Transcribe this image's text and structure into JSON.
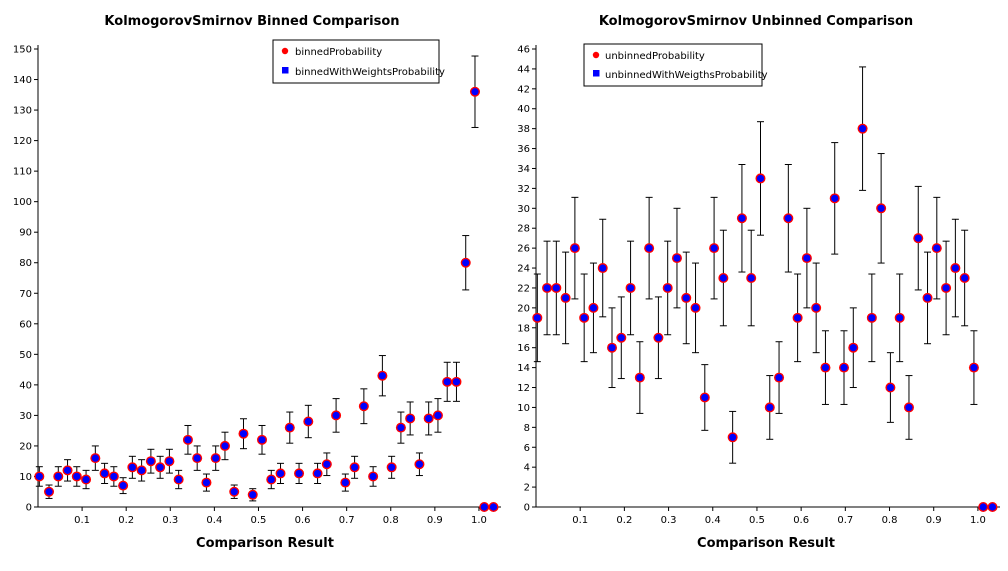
{
  "chart_data": [
    {
      "type": "scatter",
      "title": "KolmogorovSmirnov Binned Comparison",
      "xlabel": "Comparison Result",
      "ylabel": "",
      "xlim": [
        0.0,
        1.05
      ],
      "ylim": [
        0,
        150
      ],
      "xticks": [
        0.1,
        0.2,
        0.3,
        0.4,
        0.5,
        0.6,
        0.7,
        0.8,
        0.9,
        1.0
      ],
      "xtick_labels": [
        "0.1",
        "0.2",
        "0.3",
        "0.4",
        "0.5",
        "0.6",
        "0.7",
        "0.8",
        "0.9",
        "1.0"
      ],
      "yticks": [
        0,
        10,
        20,
        30,
        40,
        50,
        60,
        70,
        80,
        90,
        100,
        110,
        120,
        130,
        140,
        150
      ],
      "ytick_labels": [
        "0",
        "10",
        "20",
        "30",
        "40",
        "50",
        "60",
        "70",
        "80",
        "90",
        "100",
        "110",
        "120",
        "130",
        "140",
        "150"
      ],
      "grid": false,
      "legend_position": "top-right",
      "series": [
        {
          "name": "binnedProbability",
          "color": "#ff0000",
          "marker": "circle",
          "x": [
            0.003,
            0.025,
            0.046,
            0.067,
            0.088,
            0.109,
            0.13,
            0.151,
            0.172,
            0.193,
            0.214,
            0.235,
            0.256,
            0.277,
            0.298,
            0.319,
            0.34,
            0.361,
            0.382,
            0.403,
            0.424,
            0.445,
            0.466,
            0.487,
            0.508,
            0.529,
            0.55,
            0.571,
            0.592,
            0.613,
            0.634,
            0.655,
            0.676,
            0.697,
            0.718,
            0.739,
            0.76,
            0.781,
            0.802,
            0.823,
            0.844,
            0.865,
            0.886,
            0.907,
            0.928,
            0.949,
            0.97,
            0.991,
            1.012,
            1.033
          ],
          "y": [
            10,
            5,
            10,
            12,
            10,
            9,
            16,
            11,
            10,
            7,
            13,
            12,
            15,
            13,
            15,
            9,
            22,
            16,
            8,
            16,
            20,
            5,
            24,
            4,
            22,
            9,
            11,
            26,
            11,
            28,
            11,
            14,
            30,
            8,
            13,
            33,
            10,
            43,
            13,
            26,
            29,
            14,
            29,
            30,
            41,
            41,
            80,
            136,
            0,
            0
          ],
          "error": [
            3.2,
            2.2,
            3.2,
            3.5,
            3.2,
            3.0,
            4.0,
            3.3,
            3.2,
            2.6,
            3.6,
            3.5,
            3.9,
            3.6,
            3.9,
            3.0,
            4.7,
            4.0,
            2.8,
            4.0,
            4.5,
            2.2,
            4.9,
            2.0,
            4.7,
            3.0,
            3.3,
            5.1,
            3.3,
            5.3,
            3.3,
            3.7,
            5.5,
            2.8,
            3.6,
            5.7,
            3.2,
            6.6,
            3.6,
            5.1,
            5.4,
            3.7,
            5.4,
            5.5,
            6.4,
            6.4,
            8.9,
            11.7,
            0,
            0
          ]
        },
        {
          "name": "binnedWithWeightsProbability",
          "color": "#0000ff",
          "marker": "square"
        }
      ]
    },
    {
      "type": "scatter",
      "title": "KolmogorovSmirnov Unbinned Comparison",
      "xlabel": "Comparison Result",
      "ylabel": "",
      "xlim": [
        0.0,
        1.05
      ],
      "ylim": [
        0,
        46
      ],
      "xticks": [
        0.1,
        0.2,
        0.3,
        0.4,
        0.5,
        0.6,
        0.7,
        0.8,
        0.9,
        1.0
      ],
      "xtick_labels": [
        "0.1",
        "0.2",
        "0.3",
        "0.4",
        "0.5",
        "0.6",
        "0.7",
        "0.8",
        "0.9",
        "1.0"
      ],
      "yticks": [
        0,
        2,
        4,
        6,
        8,
        10,
        12,
        14,
        16,
        18,
        20,
        22,
        24,
        26,
        28,
        30,
        32,
        34,
        36,
        38,
        40,
        42,
        44,
        46
      ],
      "ytick_labels": [
        "0",
        "2",
        "4",
        "6",
        "8",
        "10",
        "12",
        "14",
        "16",
        "18",
        "20",
        "22",
        "24",
        "26",
        "28",
        "30",
        "32",
        "34",
        "36",
        "38",
        "40",
        "42",
        "44",
        "46"
      ],
      "grid": false,
      "legend_position": "top-left",
      "series": [
        {
          "name": "unbinnedProbability",
          "color": "#ff0000",
          "marker": "circle",
          "x": [
            0.003,
            0.025,
            0.046,
            0.067,
            0.088,
            0.109,
            0.13,
            0.151,
            0.172,
            0.193,
            0.214,
            0.235,
            0.256,
            0.277,
            0.298,
            0.319,
            0.34,
            0.361,
            0.382,
            0.403,
            0.424,
            0.445,
            0.466,
            0.487,
            0.508,
            0.529,
            0.55,
            0.571,
            0.592,
            0.613,
            0.634,
            0.655,
            0.676,
            0.697,
            0.718,
            0.739,
            0.76,
            0.781,
            0.802,
            0.823,
            0.844,
            0.865,
            0.886,
            0.907,
            0.928,
            0.949,
            0.97,
            0.991,
            1.012,
            1.033
          ],
          "y": [
            19,
            22,
            22,
            21,
            26,
            19,
            20,
            24,
            16,
            17,
            22,
            13,
            26,
            17,
            22,
            25,
            21,
            20,
            11,
            26,
            23,
            7,
            29,
            23,
            33,
            10,
            13,
            29,
            19,
            25,
            20,
            14,
            31,
            14,
            16,
            38,
            19,
            30,
            12,
            19,
            10,
            27,
            21,
            26,
            22,
            24,
            23,
            14,
            0,
            0
          ],
          "error": [
            4.4,
            4.7,
            4.7,
            4.6,
            5.1,
            4.4,
            4.5,
            4.9,
            4.0,
            4.1,
            4.7,
            3.6,
            5.1,
            4.1,
            4.7,
            5.0,
            4.6,
            4.5,
            3.3,
            5.1,
            4.8,
            2.6,
            5.4,
            4.8,
            5.7,
            3.2,
            3.6,
            5.4,
            4.4,
            5.0,
            4.5,
            3.7,
            5.6,
            3.7,
            4.0,
            6.2,
            4.4,
            5.5,
            3.5,
            4.4,
            3.2,
            5.2,
            4.6,
            5.1,
            4.7,
            4.9,
            4.8,
            3.7,
            0,
            0
          ]
        },
        {
          "name": "unbinnedWithWeigthsProbability",
          "color": "#0000ff",
          "marker": "square"
        }
      ]
    }
  ]
}
